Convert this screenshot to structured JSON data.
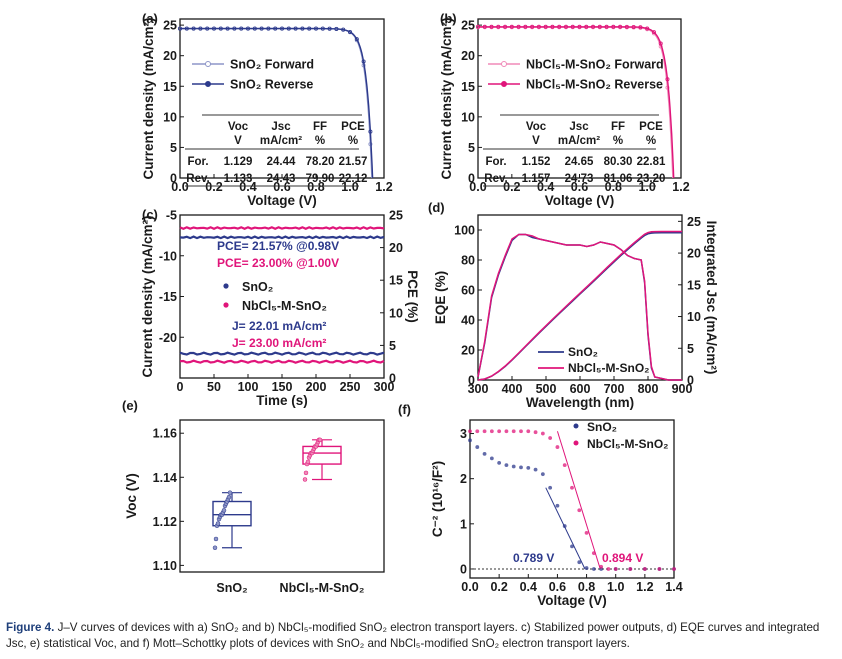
{
  "figure": {
    "caption_label": "Figure 4.",
    "caption_text": "J–V curves of devices with a) SnO₂ and b) NbCl₅-modified SnO₂ electron transport layers. c) Stabilized power outputs, d) EQE curves and integrated Jsc, e) statistical Voc, and f) Mott–Schottky plots of devices with SnO₂ and NbCl₅-modified SnO₂ electron transport layers."
  },
  "colors": {
    "sno2": "#2d3a8c",
    "nb": "#e0157a",
    "nb_light": "#f08ab8",
    "sno2_light": "#8e96c8"
  },
  "chart_data": [
    {
      "panel": "(a)",
      "type": "line",
      "xlabel": "Voltage (V)",
      "ylabel": "Current density (mA/cm²)",
      "xlim": [
        0,
        1.2
      ],
      "ylim": [
        0,
        26
      ],
      "xticks": [
        "0.0",
        "0.2",
        "0.4",
        "0.6",
        "0.8",
        "1.0",
        "1.2"
      ],
      "yticks": [
        "0",
        "5",
        "10",
        "15",
        "20",
        "25"
      ],
      "series": [
        {
          "name": "SnO₂ Forward",
          "jsc": 24.44,
          "voc": 1.129
        },
        {
          "name": "SnO₂ Reverse",
          "jsc": 24.43,
          "voc": 1.133
        }
      ],
      "table": {
        "header": [
          "",
          "Voc",
          "Jsc",
          "FF",
          "PCE"
        ],
        "units": [
          "",
          "V",
          "mA/cm²",
          "%",
          "%"
        ],
        "rows": [
          [
            "For.",
            "1.129",
            "24.44",
            "78.20",
            "21.57"
          ],
          [
            "Rev.",
            "1.133",
            "24.43",
            "79.90",
            "22.12"
          ]
        ]
      }
    },
    {
      "panel": "(b)",
      "type": "line",
      "xlabel": "Voltage (V)",
      "ylabel": "Current density (mA/cm²)",
      "xlim": [
        0,
        1.2
      ],
      "ylim": [
        0,
        26
      ],
      "xticks": [
        "0.0",
        "0.2",
        "0.4",
        "0.6",
        "0.8",
        "1.0",
        "1.2"
      ],
      "yticks": [
        "0",
        "5",
        "10",
        "15",
        "20",
        "25"
      ],
      "series": [
        {
          "name": "NbCl₅-M-SnO₂ Forward",
          "jsc": 24.65,
          "voc": 1.152
        },
        {
          "name": "NbCl₅-M-SnO₂ Reverse",
          "jsc": 24.73,
          "voc": 1.157
        }
      ],
      "table": {
        "header": [
          "",
          "Voc",
          "Jsc",
          "FF",
          "PCE"
        ],
        "units": [
          "",
          "V",
          "mA/cm²",
          "%",
          "%"
        ],
        "rows": [
          [
            "For.",
            "1.152",
            "24.65",
            "80.30",
            "22.81"
          ],
          [
            "Rev.",
            "1.157",
            "24.73",
            "81.06",
            "23.20"
          ]
        ]
      }
    },
    {
      "panel": "(c)",
      "type": "line",
      "xlabel": "Time (s)",
      "ylabel": "Current density (mA/cm²)",
      "y2label": "PCE (%)",
      "xlim": [
        0,
        300
      ],
      "ylim": [
        -25,
        -5
      ],
      "y2lim": [
        0,
        25
      ],
      "xticks": [
        "0",
        "50",
        "100",
        "150",
        "200",
        "250",
        "300"
      ],
      "yticks": [
        "-5",
        "-10",
        "-15",
        "-20"
      ],
      "y2ticks": [
        "0",
        "5",
        "10",
        "15",
        "20",
        "25"
      ],
      "series": [
        {
          "name": "SnO₂",
          "pce": 21.57,
          "j": -22.01,
          "legend": "SnO₂"
        },
        {
          "name": "NbCl₅-M-SnO₂",
          "pce": 23.0,
          "j": -23.0,
          "legend": "NbCl₅-M-SnO₂"
        }
      ],
      "annotations": [
        "PCE= 21.57% @0.98V",
        "PCE= 23.00% @1.00V",
        "J= 22.01 mA/cm²",
        "J= 23.00 mA/cm²"
      ]
    },
    {
      "panel": "(d)",
      "type": "line",
      "xlabel": "Wavelength (nm)",
      "ylabel": "EQE (%)",
      "y2label": "Integrated Jsc (mA/cm²)",
      "xlim": [
        300,
        900
      ],
      "ylim": [
        0,
        110
      ],
      "y2lim": [
        0,
        26
      ],
      "xticks": [
        "300",
        "400",
        "500",
        "600",
        "700",
        "800",
        "900"
      ],
      "yticks": [
        "0",
        "20",
        "40",
        "60",
        "80",
        "100"
      ],
      "y2ticks": [
        "0",
        "5",
        "10",
        "15",
        "20",
        "25"
      ],
      "wavelength": [
        300,
        320,
        340,
        360,
        380,
        400,
        420,
        440,
        460,
        480,
        500,
        520,
        540,
        560,
        580,
        600,
        620,
        640,
        660,
        680,
        700,
        720,
        740,
        760,
        780,
        790,
        800,
        810,
        820,
        840,
        860,
        880,
        900
      ],
      "series": [
        {
          "name": "SnO₂",
          "eqe": [
            2,
            25,
            55,
            70,
            82,
            93,
            97,
            97,
            95,
            94,
            93,
            92,
            91,
            90,
            90,
            90,
            89,
            90,
            92,
            91,
            90,
            87,
            83,
            81,
            80,
            65,
            30,
            8,
            2,
            1,
            0,
            0,
            0
          ]
        },
        {
          "name": "NbCl₅-M-SnO₂",
          "eqe": [
            2,
            26,
            56,
            71,
            83,
            94,
            97,
            97,
            96,
            94,
            93,
            92,
            91,
            90,
            90,
            90,
            89,
            90,
            92,
            91,
            90,
            87,
            83,
            81,
            80,
            66,
            31,
            9,
            2,
            1,
            0,
            0,
            0
          ]
        }
      ]
    },
    {
      "panel": "(e)",
      "type": "box",
      "ylabel": "Voc (V)",
      "ylim": [
        1.097,
        1.166
      ],
      "yticks": [
        "1.10",
        "1.12",
        "1.14",
        "1.16"
      ],
      "categories": [
        "SnO₂",
        "NbCl₅-M-SnO₂"
      ],
      "boxes": [
        {
          "min": 1.108,
          "q1": 1.118,
          "median": 1.123,
          "q3": 1.129,
          "max": 1.133,
          "points": [
            1.108,
            1.112,
            1.118,
            1.119,
            1.121,
            1.122,
            1.123,
            1.123,
            1.124,
            1.125,
            1.127,
            1.128,
            1.129,
            1.13,
            1.131,
            1.133
          ]
        },
        {
          "min": 1.139,
          "q1": 1.146,
          "median": 1.151,
          "q3": 1.154,
          "max": 1.157,
          "points": [
            1.139,
            1.142,
            1.146,
            1.147,
            1.149,
            1.15,
            1.151,
            1.151,
            1.152,
            1.153,
            1.154,
            1.154,
            1.155,
            1.156,
            1.157,
            1.157
          ]
        }
      ]
    },
    {
      "panel": "(f)",
      "type": "scatter",
      "xlabel": "Voltage (V)",
      "ylabel": "C⁻² (10¹⁶/F²)",
      "xlim": [
        0,
        1.4
      ],
      "ylim": [
        -0.2,
        3.3
      ],
      "xticks": [
        "0.0",
        "0.2",
        "0.4",
        "0.6",
        "0.8",
        "1.0",
        "1.2",
        "1.4"
      ],
      "yticks": [
        "0",
        "1",
        "2",
        "3"
      ],
      "series": [
        {
          "name": "SnO₂",
          "x": [
            0,
            0.05,
            0.1,
            0.15,
            0.2,
            0.25,
            0.3,
            0.35,
            0.4,
            0.45,
            0.5,
            0.55,
            0.6,
            0.65,
            0.7,
            0.75,
            0.8,
            0.85,
            0.9,
            1.0,
            1.1,
            1.2,
            1.3,
            1.4
          ],
          "y": [
            2.85,
            2.7,
            2.55,
            2.45,
            2.35,
            2.3,
            2.27,
            2.25,
            2.24,
            2.2,
            2.1,
            1.8,
            1.4,
            0.95,
            0.5,
            0.15,
            0.02,
            0,
            0,
            0,
            0,
            0,
            0,
            0
          ]
        },
        {
          "name": "NbCl₅-M-SnO₂",
          "x": [
            0,
            0.05,
            0.1,
            0.15,
            0.2,
            0.25,
            0.3,
            0.35,
            0.4,
            0.45,
            0.5,
            0.55,
            0.6,
            0.65,
            0.7,
            0.75,
            0.8,
            0.85,
            0.9,
            0.95,
            1.0,
            1.1,
            1.2,
            1.3,
            1.4
          ],
          "y": [
            3.05,
            3.05,
            3.05,
            3.05,
            3.05,
            3.05,
            3.05,
            3.05,
            3.05,
            3.03,
            3.0,
            2.9,
            2.7,
            2.3,
            1.8,
            1.3,
            0.8,
            0.35,
            0.05,
            0,
            0,
            0,
            0,
            0,
            0
          ]
        }
      ],
      "annotations": [
        "0.789 V",
        "0.894 V"
      ]
    }
  ]
}
